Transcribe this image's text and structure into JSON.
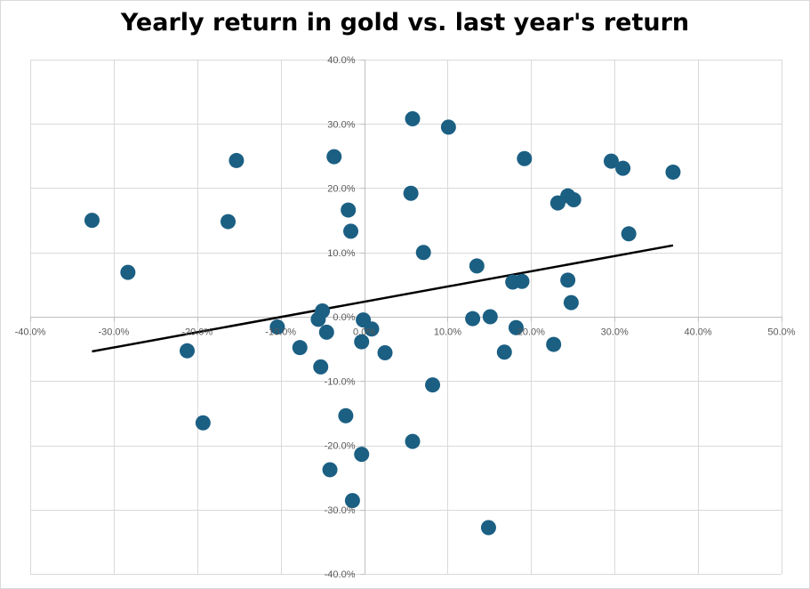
{
  "chart_data": {
    "type": "scatter",
    "title": "Yearly return in gold vs. last year's return",
    "xlabel": "",
    "ylabel": "",
    "xlim": [
      -0.4,
      0.5
    ],
    "ylim": [
      -0.4,
      0.4
    ],
    "x_ticks": [
      -0.4,
      -0.3,
      -0.2,
      -0.1,
      0.0,
      0.1,
      0.2,
      0.3,
      0.4,
      0.5
    ],
    "x_tick_labels": [
      "-40.0%",
      "-30.0%",
      "-20.0%",
      "-10.0%",
      "0.0%",
      "10.0%",
      "20.0%",
      "30.0%",
      "40.0%",
      "50.0%"
    ],
    "y_ticks": [
      -0.4,
      -0.3,
      -0.2,
      -0.1,
      0.0,
      0.1,
      0.2,
      0.3,
      0.4
    ],
    "y_tick_labels": [
      "-40.0%",
      "-30.0%",
      "-20.0%",
      "-10.0%",
      "0.0%",
      "10.0%",
      "20.0%",
      "30.0%",
      "40.0%"
    ],
    "grid": true,
    "marker_color": "#1b5f83",
    "trendline_color": "#000000",
    "gridline_color": "#d9d9d9",
    "points": [
      {
        "x": -0.326,
        "y": 0.15
      },
      {
        "x": -0.283,
        "y": 0.069
      },
      {
        "x": -0.212,
        "y": -0.053
      },
      {
        "x": -0.193,
        "y": -0.165
      },
      {
        "x": -0.163,
        "y": 0.148
      },
      {
        "x": -0.153,
        "y": 0.243
      },
      {
        "x": -0.104,
        "y": -0.016
      },
      {
        "x": -0.077,
        "y": -0.048
      },
      {
        "x": -0.055,
        "y": -0.004
      },
      {
        "x": -0.052,
        "y": -0.078
      },
      {
        "x": -0.05,
        "y": 0.009
      },
      {
        "x": -0.045,
        "y": -0.024
      },
      {
        "x": -0.041,
        "y": -0.238
      },
      {
        "x": -0.036,
        "y": 0.249
      },
      {
        "x": -0.022,
        "y": -0.154
      },
      {
        "x": -0.019,
        "y": 0.166
      },
      {
        "x": -0.016,
        "y": 0.133
      },
      {
        "x": -0.014,
        "y": -0.286
      },
      {
        "x": -0.003,
        "y": -0.039
      },
      {
        "x": -0.003,
        "y": -0.214
      },
      {
        "x": -0.001,
        "y": -0.005
      },
      {
        "x": 0.009,
        "y": -0.019
      },
      {
        "x": 0.025,
        "y": -0.056
      },
      {
        "x": 0.056,
        "y": 0.192
      },
      {
        "x": 0.058,
        "y": 0.308
      },
      {
        "x": 0.058,
        "y": -0.194
      },
      {
        "x": 0.071,
        "y": 0.1
      },
      {
        "x": 0.082,
        "y": -0.106
      },
      {
        "x": 0.101,
        "y": 0.295
      },
      {
        "x": 0.13,
        "y": -0.003
      },
      {
        "x": 0.135,
        "y": 0.079
      },
      {
        "x": 0.149,
        "y": -0.328
      },
      {
        "x": 0.151,
        "y": 0.0
      },
      {
        "x": 0.168,
        "y": -0.055
      },
      {
        "x": 0.178,
        "y": 0.054
      },
      {
        "x": 0.182,
        "y": -0.017
      },
      {
        "x": 0.189,
        "y": 0.055
      },
      {
        "x": 0.192,
        "y": 0.246
      },
      {
        "x": 0.227,
        "y": -0.043
      },
      {
        "x": 0.232,
        "y": 0.177
      },
      {
        "x": 0.244,
        "y": 0.057
      },
      {
        "x": 0.244,
        "y": 0.188
      },
      {
        "x": 0.248,
        "y": 0.022
      },
      {
        "x": 0.251,
        "y": 0.182
      },
      {
        "x": 0.296,
        "y": 0.242
      },
      {
        "x": 0.31,
        "y": 0.231
      },
      {
        "x": 0.317,
        "y": 0.129
      },
      {
        "x": 0.37,
        "y": 0.225
      }
    ],
    "trendline": {
      "x": [
        -0.326,
        0.37
      ],
      "y": [
        -0.054,
        0.111
      ]
    }
  }
}
